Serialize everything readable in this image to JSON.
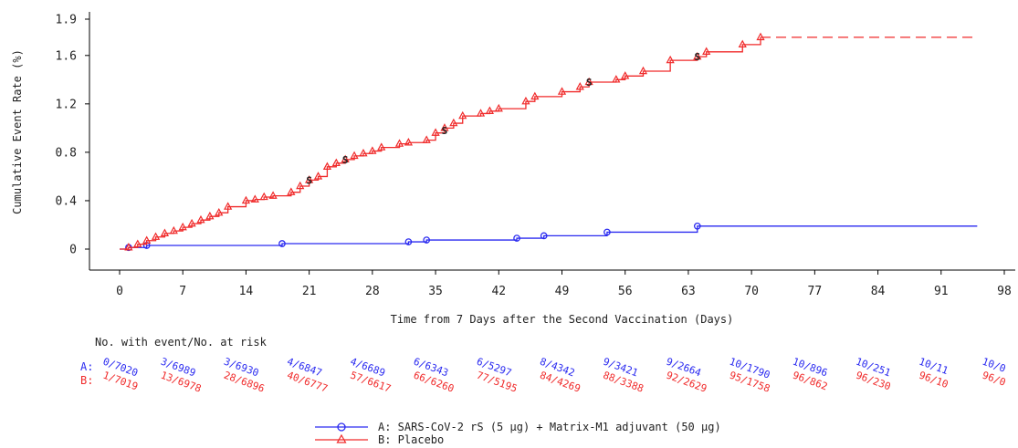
{
  "chart_data": {
    "type": "line",
    "title": "",
    "xlabel": "Time from 7 Days after the Second Vaccination (Days)",
    "ylabel": "Cumulative Event Rate (%)",
    "xlim": [
      0,
      98
    ],
    "ylim": [
      0,
      1.9
    ],
    "x_ticks": [
      "0",
      "7",
      "14",
      "21",
      "28",
      "35",
      "42",
      "49",
      "56",
      "63",
      "70",
      "77",
      "84",
      "91",
      "98"
    ],
    "y_ticks": [
      "0",
      "0.4",
      "0.8",
      "1.2",
      "1.6",
      "1.9"
    ],
    "series": [
      {
        "name": "A: SARS-CoV-2 rS (5 µg) + Matrix-M1 adjuvant (50 µg)",
        "color": "#2a2af0",
        "marker": "circle",
        "steps": [
          [
            0,
            0
          ],
          [
            1,
            0.013
          ],
          [
            3,
            0.03
          ],
          [
            18,
            0.045
          ],
          [
            32,
            0.06
          ],
          [
            34,
            0.075
          ],
          [
            44,
            0.09
          ],
          [
            47,
            0.11
          ],
          [
            54,
            0.14
          ],
          [
            64,
            0.19
          ],
          [
            95,
            0.19
          ]
        ],
        "markers_x": [
          1,
          3,
          18,
          32,
          34,
          44,
          47,
          54,
          64
        ]
      },
      {
        "name": "B: Placebo",
        "color": "#f02a2a",
        "marker": "triangle",
        "steps": [
          [
            0,
            0
          ],
          [
            1,
            0.013
          ],
          [
            2,
            0.04
          ],
          [
            3,
            0.07
          ],
          [
            4,
            0.1
          ],
          [
            5,
            0.13
          ],
          [
            6,
            0.15
          ],
          [
            7,
            0.18
          ],
          [
            8,
            0.21
          ],
          [
            9,
            0.24
          ],
          [
            10,
            0.27
          ],
          [
            11,
            0.3
          ],
          [
            12,
            0.35
          ],
          [
            14,
            0.4
          ],
          [
            15,
            0.41
          ],
          [
            16,
            0.43
          ],
          [
            17,
            0.44
          ],
          [
            19,
            0.47
          ],
          [
            20,
            0.52
          ],
          [
            21,
            0.57
          ],
          [
            22,
            0.6
          ],
          [
            23,
            0.68
          ],
          [
            24,
            0.71
          ],
          [
            25,
            0.74
          ],
          [
            26,
            0.77
          ],
          [
            27,
            0.79
          ],
          [
            28,
            0.81
          ],
          [
            29,
            0.84
          ],
          [
            31,
            0.87
          ],
          [
            32,
            0.88
          ],
          [
            34,
            0.9
          ],
          [
            35,
            0.96
          ],
          [
            36,
            1.0
          ],
          [
            37,
            1.04
          ],
          [
            38,
            1.1
          ],
          [
            40,
            1.12
          ],
          [
            41,
            1.14
          ],
          [
            42,
            1.16
          ],
          [
            45,
            1.22
          ],
          [
            46,
            1.26
          ],
          [
            49,
            1.3
          ],
          [
            51,
            1.34
          ],
          [
            52,
            1.38
          ],
          [
            55,
            1.4
          ],
          [
            56,
            1.43
          ],
          [
            58,
            1.47
          ],
          [
            61,
            1.56
          ],
          [
            64,
            1.59
          ],
          [
            65,
            1.63
          ],
          [
            69,
            1.69
          ],
          [
            71,
            1.75
          ],
          [
            95,
            1.75
          ]
        ],
        "markers_x": [
          1,
          2,
          3,
          4,
          5,
          6,
          7,
          8,
          9,
          10,
          11,
          12,
          14,
          15,
          16,
          17,
          19,
          20,
          21,
          22,
          23,
          24,
          25,
          26,
          27,
          28,
          29,
          31,
          32,
          34,
          35,
          36,
          37,
          38,
          40,
          41,
          42,
          45,
          46,
          49,
          51,
          52,
          55,
          56,
          58,
          61,
          64,
          65,
          69,
          71
        ],
        "dashed_from_x": 71
      }
    ],
    "censor_marks": [
      {
        "x": 21,
        "y": 0.57
      },
      {
        "x": 25,
        "y": 0.74
      },
      {
        "x": 36,
        "y": 0.98
      },
      {
        "x": 52,
        "y": 1.38
      },
      {
        "x": 64,
        "y": 1.59
      }
    ],
    "censor_symbol": "S",
    "risk_table": {
      "title": "No. with event/No. at risk",
      "row_a_label": "A:",
      "row_b_label": "B:",
      "row_a": [
        "0/7020",
        "3/6989",
        "3/6930",
        "4/6847",
        "4/6689",
        "6/6343",
        "6/5297",
        "8/4342",
        "9/3421",
        "9/2664",
        "10/1790",
        "10/896",
        "10/251",
        "10/11",
        "10/0"
      ],
      "row_b": [
        "1/7019",
        "13/6978",
        "28/6896",
        "40/6777",
        "57/6617",
        "66/6260",
        "77/5195",
        "84/4269",
        "88/3388",
        "92/2629",
        "95/1758",
        "96/862",
        "96/230",
        "96/10",
        "96/0"
      ]
    },
    "legend": [
      {
        "label": "A: SARS-CoV-2 rS (5 µg) + Matrix-M1 adjuvant (50 µg)",
        "color": "#2a2af0",
        "marker": "circle"
      },
      {
        "label": "B: Placebo",
        "color": "#f02a2a",
        "marker": "triangle"
      }
    ],
    "legend_position": "bottom-center",
    "grid": false
  }
}
